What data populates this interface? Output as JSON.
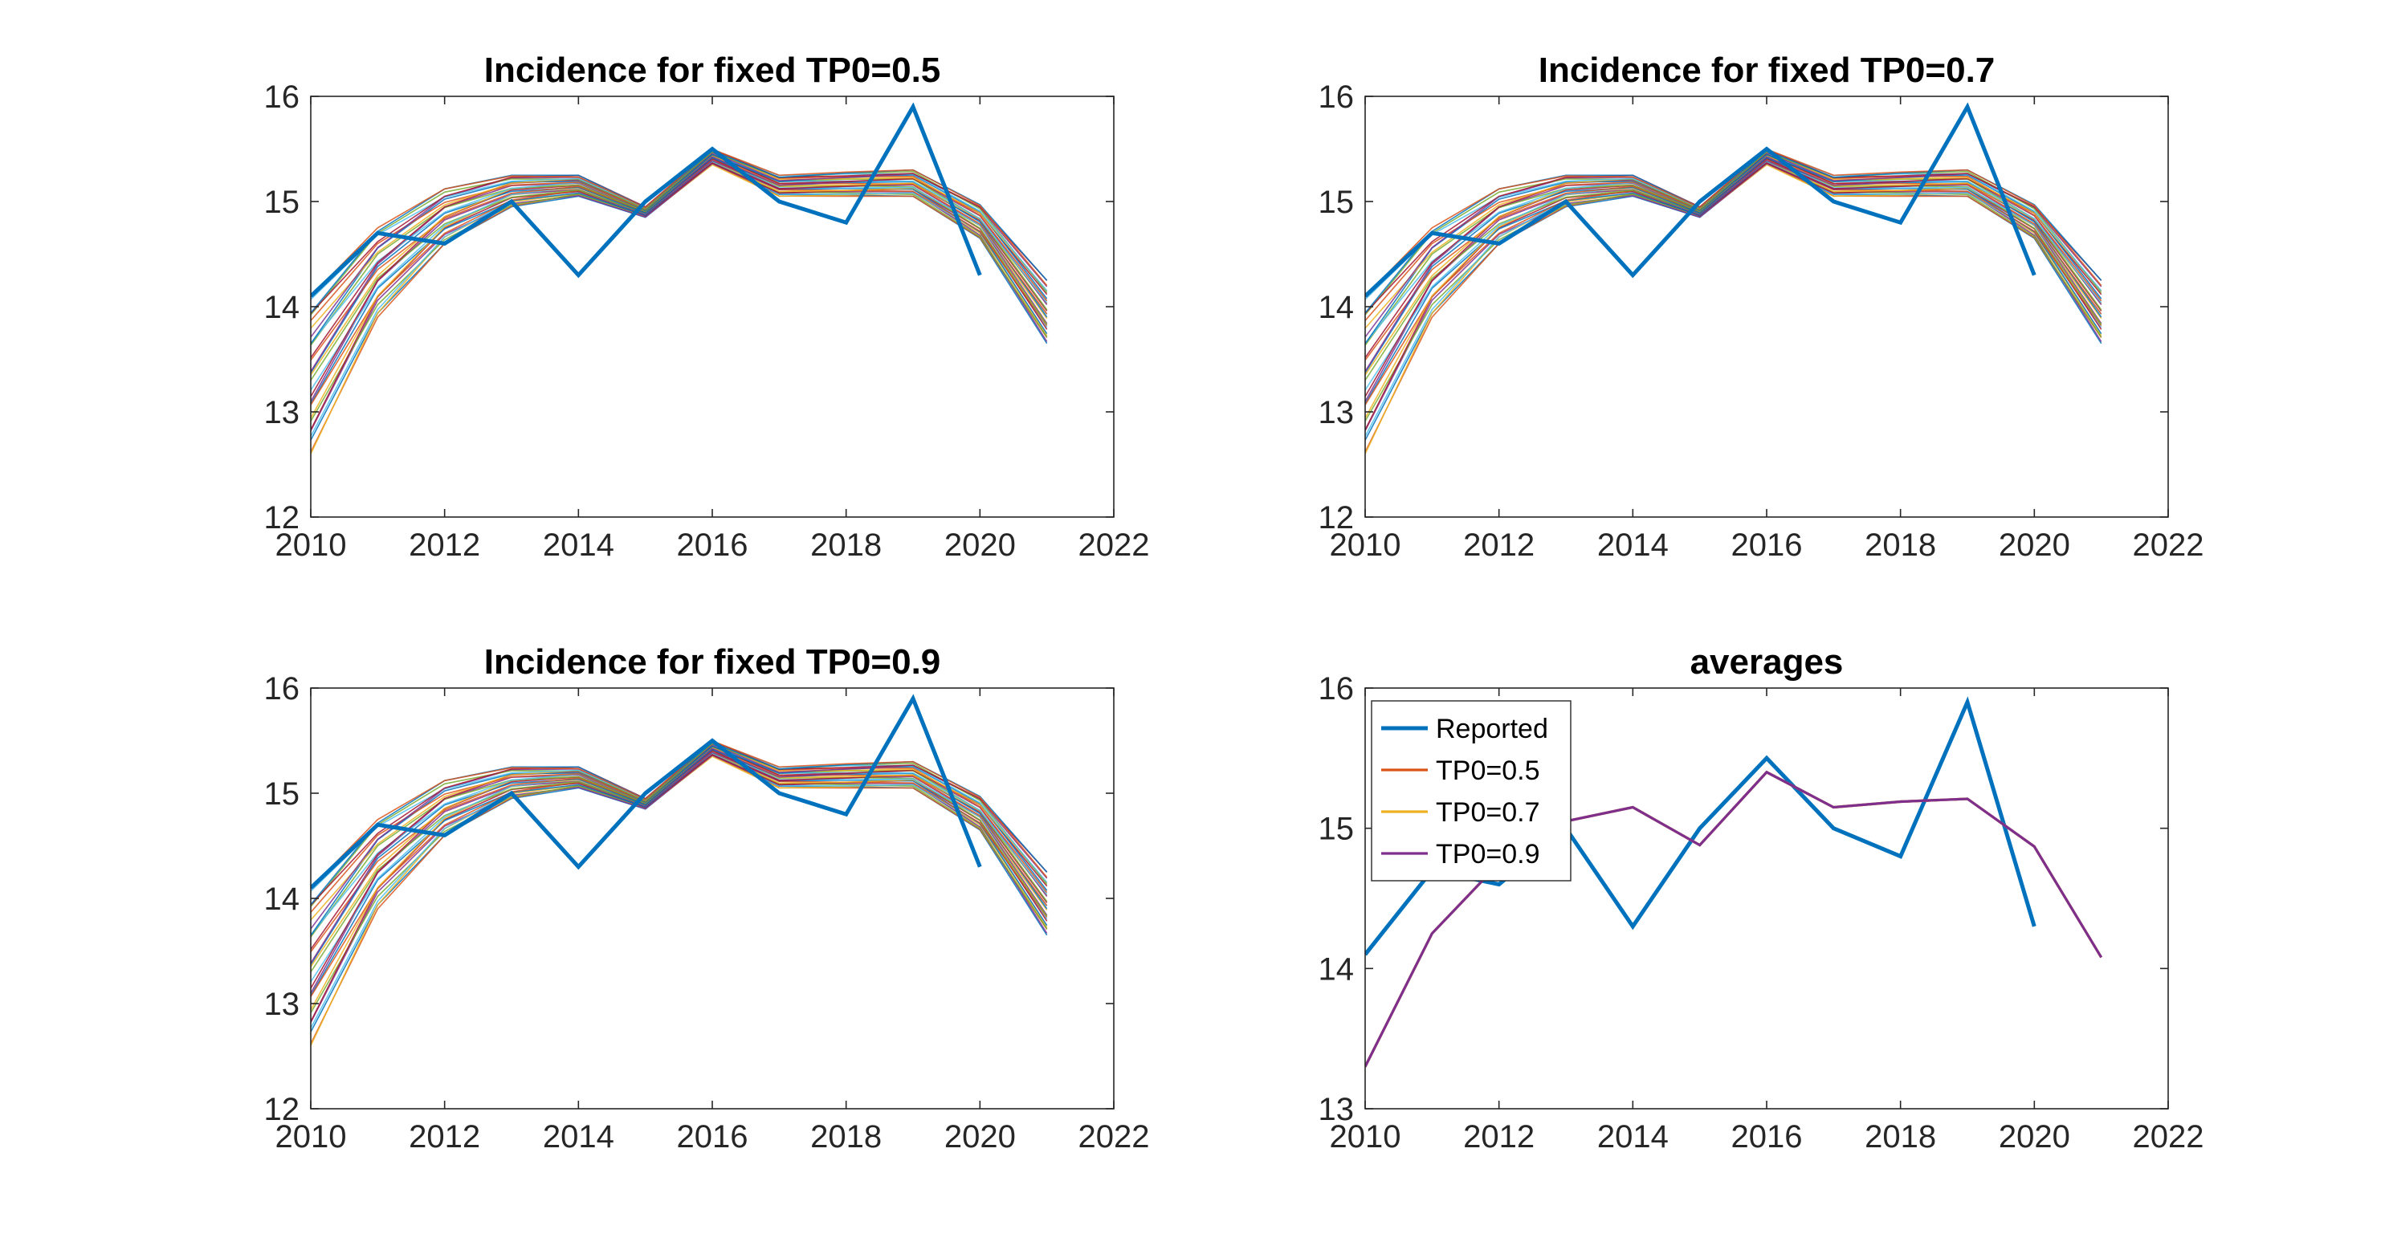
{
  "chart_data": [
    {
      "type": "line",
      "title": "Incidence for fixed TP0=0.5",
      "xlim": [
        2010,
        2022
      ],
      "ylim": [
        12,
        16
      ],
      "xticks": [
        "2010",
        "2012",
        "2014",
        "2016",
        "2018",
        "2020",
        "2022"
      ],
      "yticks": [
        "12",
        "13",
        "14",
        "15",
        "16"
      ],
      "grid": false,
      "legend": false,
      "reported": {
        "x": [
          2010,
          2011,
          2012,
          2013,
          2014,
          2015,
          2016,
          2017,
          2018,
          2019,
          2020
        ],
        "values": [
          14.1,
          14.7,
          14.6,
          15.0,
          14.3,
          15.0,
          15.5,
          15.0,
          14.8,
          15.9,
          14.3
        ],
        "color": "#0072BD"
      },
      "simulations": {
        "x": [
          2010,
          2011,
          2012,
          2013,
          2014,
          2015,
          2016,
          2017,
          2018,
          2019,
          2020,
          2021
        ],
        "count": 30,
        "low": [
          12.6,
          13.9,
          14.6,
          14.95,
          15.05,
          14.85,
          15.35,
          15.05,
          15.05,
          15.05,
          14.65,
          13.65
        ],
        "high": [
          14.1,
          14.75,
          15.12,
          15.25,
          15.25,
          14.95,
          15.5,
          15.25,
          15.28,
          15.3,
          14.97,
          14.25
        ]
      }
    },
    {
      "type": "line",
      "title": "Incidence for fixed TP0=0.7",
      "xlim": [
        2010,
        2022
      ],
      "ylim": [
        12,
        16
      ],
      "xticks": [
        "2010",
        "2012",
        "2014",
        "2016",
        "2018",
        "2020",
        "2022"
      ],
      "yticks": [
        "12",
        "13",
        "14",
        "15",
        "16"
      ],
      "grid": false,
      "legend": false,
      "reported": {
        "x": [
          2010,
          2011,
          2012,
          2013,
          2014,
          2015,
          2016,
          2017,
          2018,
          2019,
          2020
        ],
        "values": [
          14.1,
          14.7,
          14.6,
          15.0,
          14.3,
          15.0,
          15.5,
          15.0,
          14.8,
          15.9,
          14.3
        ],
        "color": "#0072BD"
      },
      "simulations": {
        "x": [
          2010,
          2011,
          2012,
          2013,
          2014,
          2015,
          2016,
          2017,
          2018,
          2019,
          2020,
          2021
        ],
        "count": 30,
        "low": [
          12.6,
          13.9,
          14.6,
          14.95,
          15.05,
          14.85,
          15.35,
          15.05,
          15.05,
          15.05,
          14.65,
          13.65
        ],
        "high": [
          14.1,
          14.75,
          15.12,
          15.25,
          15.25,
          14.95,
          15.5,
          15.25,
          15.28,
          15.3,
          14.97,
          14.25
        ]
      }
    },
    {
      "type": "line",
      "title": "Incidence for fixed TP0=0.9",
      "xlim": [
        2010,
        2022
      ],
      "ylim": [
        12,
        16
      ],
      "xticks": [
        "2010",
        "2012",
        "2014",
        "2016",
        "2018",
        "2020",
        "2022"
      ],
      "yticks": [
        "12",
        "13",
        "14",
        "15",
        "16"
      ],
      "grid": false,
      "legend": false,
      "reported": {
        "x": [
          2010,
          2011,
          2012,
          2013,
          2014,
          2015,
          2016,
          2017,
          2018,
          2019,
          2020
        ],
        "values": [
          14.1,
          14.7,
          14.6,
          15.0,
          14.3,
          15.0,
          15.5,
          15.0,
          14.8,
          15.9,
          14.3
        ],
        "color": "#0072BD"
      },
      "simulations": {
        "x": [
          2010,
          2011,
          2012,
          2013,
          2014,
          2015,
          2016,
          2017,
          2018,
          2019,
          2020,
          2021
        ],
        "count": 30,
        "low": [
          12.6,
          13.9,
          14.6,
          14.95,
          15.05,
          14.85,
          15.35,
          15.05,
          15.05,
          15.05,
          14.65,
          13.65
        ],
        "high": [
          14.1,
          14.75,
          15.12,
          15.25,
          15.25,
          14.95,
          15.5,
          15.25,
          15.28,
          15.3,
          14.97,
          14.25
        ]
      }
    },
    {
      "type": "line",
      "title": "averages",
      "xlim": [
        2010,
        2022
      ],
      "ylim": [
        13,
        16
      ],
      "xticks": [
        "2010",
        "2012",
        "2014",
        "2016",
        "2018",
        "2020",
        "2022"
      ],
      "yticks": [
        "13",
        "14",
        "15",
        "16"
      ],
      "grid": false,
      "legend": true,
      "legend_position": "top-left",
      "x": [
        2010,
        2011,
        2012,
        2013,
        2014,
        2015,
        2016,
        2017,
        2018,
        2019,
        2020,
        2021
      ],
      "series": [
        {
          "name": "Reported",
          "color": "#0072BD",
          "x": [
            2010,
            2011,
            2012,
            2013,
            2014,
            2015,
            2016,
            2017,
            2018,
            2019,
            2020
          ],
          "values": [
            14.1,
            14.7,
            14.6,
            15.0,
            14.3,
            15.0,
            15.5,
            15.0,
            14.8,
            15.9,
            14.3
          ]
        },
        {
          "name": "TP0=0.5",
          "color": "#D95319",
          "x": [
            2010,
            2011,
            2012,
            2013,
            2014,
            2015,
            2016,
            2017,
            2018,
            2019,
            2020,
            2021
          ],
          "values": [
            13.3,
            14.25,
            14.75,
            15.05,
            15.15,
            14.88,
            15.4,
            15.15,
            15.19,
            15.21,
            14.87,
            14.08
          ]
        },
        {
          "name": "TP0=0.7",
          "color": "#EDB120",
          "x": [
            2010,
            2011,
            2012,
            2013,
            2014,
            2015,
            2016,
            2017,
            2018,
            2019,
            2020,
            2021
          ],
          "values": [
            13.3,
            14.25,
            14.75,
            15.05,
            15.15,
            14.88,
            15.4,
            15.15,
            15.19,
            15.21,
            14.87,
            14.08
          ]
        },
        {
          "name": "TP0=0.9",
          "color": "#7E2F8E",
          "x": [
            2010,
            2011,
            2012,
            2013,
            2014,
            2015,
            2016,
            2017,
            2018,
            2019,
            2020,
            2021
          ],
          "values": [
            13.3,
            14.25,
            14.75,
            15.05,
            15.15,
            14.88,
            15.4,
            15.15,
            15.19,
            15.21,
            14.87,
            14.08
          ]
        }
      ]
    }
  ]
}
